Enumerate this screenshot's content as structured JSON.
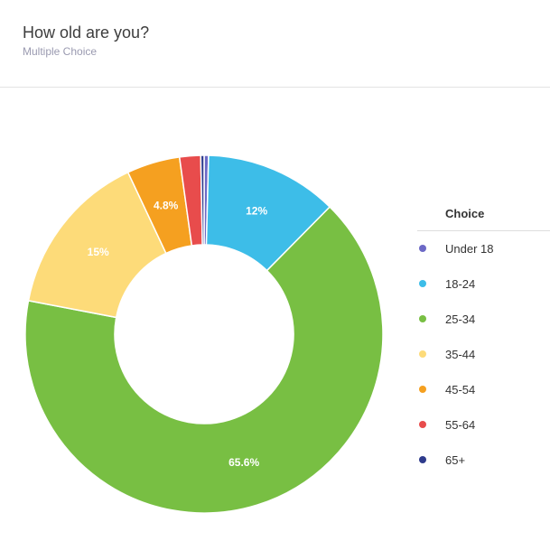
{
  "header": {
    "title": "How old are you?",
    "subtitle": "Multiple Choice"
  },
  "legend": {
    "title": "Choice"
  },
  "chart_data": {
    "type": "pie",
    "donut": true,
    "legend_position": "right",
    "categories": [
      "Under 18",
      "18-24",
      "25-34",
      "35-44",
      "45-54",
      "55-64",
      "65+"
    ],
    "values": [
      0.4,
      12,
      65.6,
      15,
      4.8,
      1.9,
      0.3
    ],
    "labels": [
      "",
      "12%",
      "65.6%",
      "15%",
      "4.8%",
      "",
      ""
    ],
    "colors": [
      "#6c69c6",
      "#3dbde8",
      "#78bf43",
      "#fddb79",
      "#f5a020",
      "#e84c4c",
      "#2e3b8c"
    ]
  }
}
